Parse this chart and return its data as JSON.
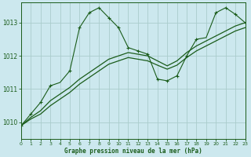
{
  "xlabel": "Graphe pression niveau de la mer (hPa)",
  "bg_color": "#cce8ee",
  "grid_color": "#aacccc",
  "line_color": "#1a5c1a",
  "xlim": [
    0,
    23
  ],
  "ylim": [
    1009.5,
    1013.6
  ],
  "yticks": [
    1010,
    1011,
    1012,
    1013
  ],
  "xticks": [
    0,
    1,
    2,
    3,
    4,
    5,
    6,
    7,
    8,
    9,
    10,
    11,
    12,
    13,
    14,
    15,
    16,
    17,
    18,
    19,
    20,
    21,
    22,
    23
  ],
  "series1": {
    "x": [
      0,
      1,
      2,
      3,
      4,
      5,
      6,
      7,
      8,
      9,
      10,
      11,
      12,
      13,
      14,
      15,
      16,
      17,
      18,
      19,
      20,
      21,
      22,
      23
    ],
    "y": [
      1009.9,
      1010.25,
      1010.6,
      1011.1,
      1011.2,
      1011.55,
      1012.85,
      1013.3,
      1013.45,
      1013.15,
      1012.85,
      1012.25,
      1012.15,
      1012.05,
      1011.3,
      1011.25,
      1011.4,
      1012.0,
      1012.5,
      1012.55,
      1013.3,
      1013.45,
      1013.25,
      1013.0
    ],
    "markers_x": [
      0,
      1,
      2,
      3,
      5,
      6,
      7,
      8,
      9,
      10,
      11,
      12,
      13,
      14,
      15,
      16,
      17,
      18,
      20,
      21,
      22,
      23
    ],
    "markers_y": [
      1009.9,
      1010.25,
      1010.6,
      1011.1,
      1011.55,
      1012.85,
      1013.3,
      1013.45,
      1013.15,
      1012.85,
      1012.25,
      1012.15,
      1012.05,
      1011.3,
      1011.25,
      1011.4,
      1012.0,
      1012.5,
      1013.3,
      1013.45,
      1013.25,
      1013.0
    ]
  },
  "series2": {
    "x": [
      0,
      1,
      2,
      3,
      4,
      5,
      6,
      7,
      8,
      9,
      10,
      11,
      12,
      13,
      14,
      15,
      16,
      17,
      18,
      19,
      20,
      21,
      22,
      23
    ],
    "y": [
      1009.9,
      1010.15,
      1010.35,
      1010.65,
      1010.85,
      1011.05,
      1011.3,
      1011.5,
      1011.7,
      1011.9,
      1012.0,
      1012.1,
      1012.05,
      1012.0,
      1011.85,
      1011.7,
      1011.85,
      1012.1,
      1012.3,
      1012.45,
      1012.6,
      1012.75,
      1012.9,
      1013.0
    ]
  },
  "series3": {
    "x": [
      0,
      1,
      2,
      3,
      4,
      5,
      6,
      7,
      8,
      9,
      10,
      11,
      12,
      13,
      14,
      15,
      16,
      17,
      18,
      19,
      20,
      21,
      22,
      23
    ],
    "y": [
      1009.9,
      1010.1,
      1010.25,
      1010.5,
      1010.7,
      1010.9,
      1011.15,
      1011.35,
      1011.55,
      1011.75,
      1011.85,
      1011.95,
      1011.9,
      1011.85,
      1011.72,
      1011.6,
      1011.72,
      1011.95,
      1012.15,
      1012.3,
      1012.45,
      1012.6,
      1012.75,
      1012.85
    ]
  }
}
